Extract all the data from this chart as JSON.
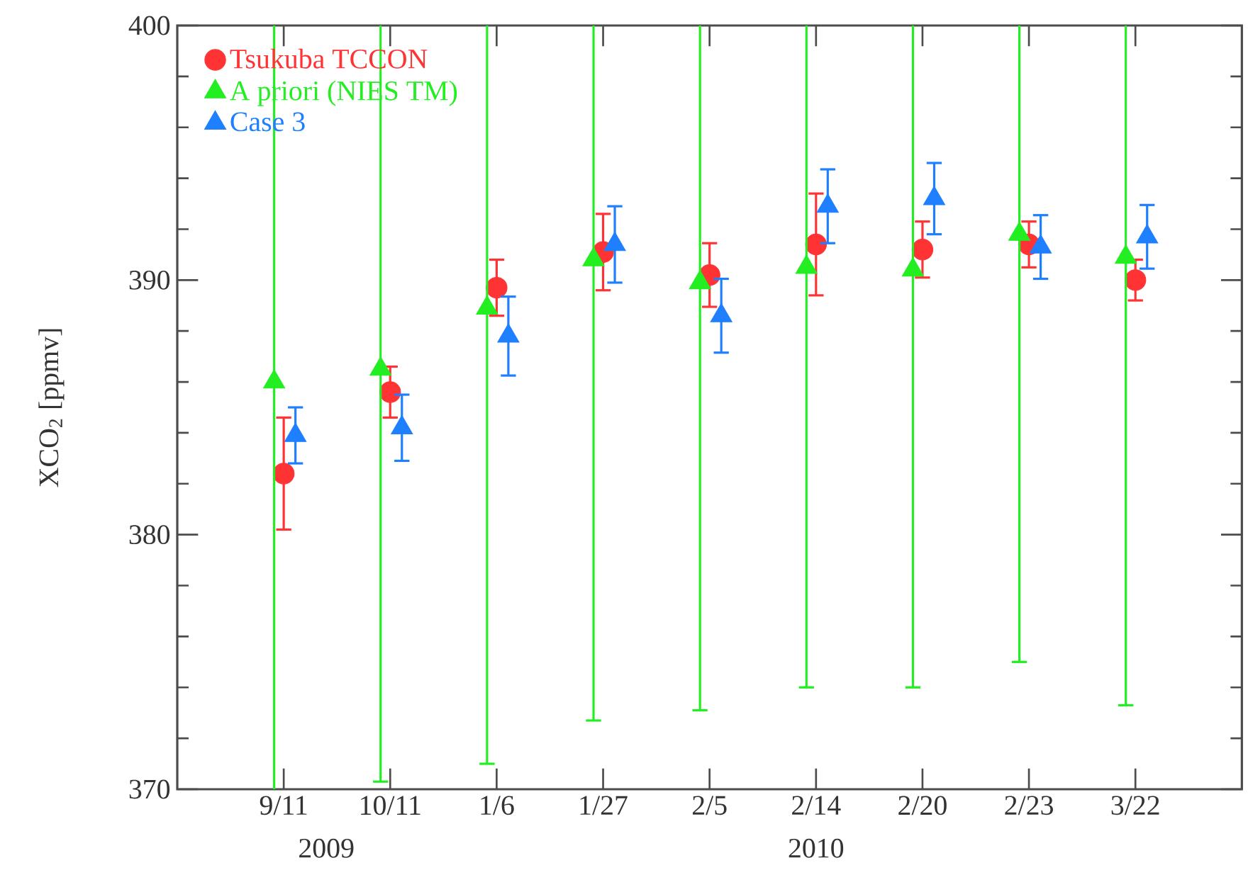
{
  "chart_data": {
    "type": "scatter",
    "ylabel": "XCO$_{2}$ [ppmv]",
    "categories": [
      "9/11",
      "10/11",
      "1/6",
      "1/27",
      "2/5",
      "2/14",
      "2/20",
      "2/23",
      "3/22"
    ],
    "annotations": [
      "2009",
      "2010"
    ],
    "ylim": [
      370,
      400
    ],
    "yticks": [
      370,
      380,
      390,
      400
    ],
    "legend": "top left",
    "grid": false,
    "series": [
      {
        "name": "Tsukuba TCCON",
        "color": "#ff3333",
        "marker": "circle",
        "values": [
          382.4,
          385.6,
          389.7,
          391.1,
          390.2,
          391.4,
          391.2,
          391.4,
          390.0
        ],
        "errors": [
          2.2,
          1.0,
          1.1,
          1.5,
          1.25,
          2.0,
          1.1,
          0.9,
          0.8
        ]
      },
      {
        "name": "A priori (NIES TM)",
        "color": "#22ee22",
        "marker": "triangle",
        "values": [
          386.0,
          386.5,
          388.9,
          390.8,
          389.9,
          390.5,
          390.4,
          391.8,
          390.9
        ],
        "errors": [
          17,
          16.2,
          17.9,
          18.1,
          16.8,
          16.5,
          16.4,
          16.8,
          17.6
        ]
      },
      {
        "name": "Case 3",
        "color": "#1e7fff",
        "marker": "triangle",
        "values": [
          383.9,
          384.2,
          387.8,
          391.4,
          388.6,
          392.9,
          393.2,
          391.3,
          391.7
        ],
        "errors": [
          1.1,
          1.3,
          1.55,
          1.5,
          1.45,
          1.45,
          1.4,
          1.25,
          1.25
        ]
      }
    ]
  }
}
